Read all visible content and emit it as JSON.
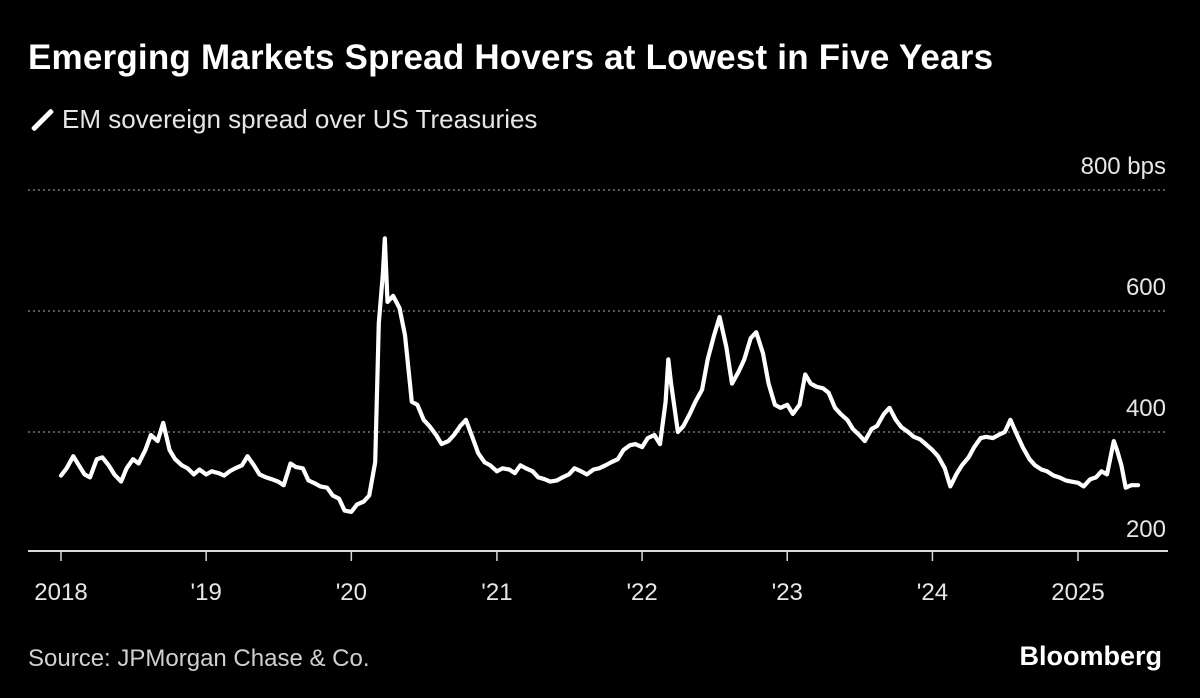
{
  "title": "Emerging Markets Spread Hovers at Lowest in Five Years",
  "legend_label": "EM sovereign spread over US Treasuries",
  "source": "Source: JPMorgan Chase & Co.",
  "brand": "Bloomberg",
  "colors": {
    "background": "#000000",
    "line": "#ffffff",
    "text": "#e6e6e6",
    "grid": "#8c8c8c"
  },
  "chart_data": {
    "type": "line",
    "title": "Emerging Markets Spread Hovers at Lowest in Five Years",
    "ylabel": "",
    "xlabel": "",
    "ylim": [
      200,
      800
    ],
    "xlim": [
      "2018-01-01",
      "2025-12-31"
    ],
    "grid": true,
    "legend_position": "top-left",
    "y_ticks": [
      {
        "value": 800,
        "label": "800 bps"
      },
      {
        "value": 600,
        "label": "600"
      },
      {
        "value": 400,
        "label": "400"
      },
      {
        "value": 200,
        "label": "200"
      }
    ],
    "x_ticks": [
      {
        "value": "2018-01-01",
        "label": "2018"
      },
      {
        "value": "2019-01-01",
        "label": "'19"
      },
      {
        "value": "2020-01-01",
        "label": "'20"
      },
      {
        "value": "2021-01-01",
        "label": "'21"
      },
      {
        "value": "2022-01-01",
        "label": "'22"
      },
      {
        "value": "2023-01-01",
        "label": "'23"
      },
      {
        "value": "2024-01-01",
        "label": "'24"
      },
      {
        "value": "2025-01-01",
        "label": "2025"
      }
    ],
    "series": [
      {
        "name": "EM sovereign spread over US Treasuries",
        "x": [
          "2018-01-01",
          "2018-01-15",
          "2018-02-01",
          "2018-02-15",
          "2018-03-01",
          "2018-03-15",
          "2018-04-01",
          "2018-04-15",
          "2018-05-01",
          "2018-05-15",
          "2018-06-01",
          "2018-06-15",
          "2018-07-01",
          "2018-07-15",
          "2018-08-01",
          "2018-08-15",
          "2018-09-01",
          "2018-09-15",
          "2018-10-01",
          "2018-10-15",
          "2018-11-01",
          "2018-11-15",
          "2018-12-01",
          "2018-12-15",
          "2019-01-01",
          "2019-01-15",
          "2019-02-01",
          "2019-02-15",
          "2019-03-01",
          "2019-03-15",
          "2019-04-01",
          "2019-04-15",
          "2019-05-01",
          "2019-05-15",
          "2019-06-01",
          "2019-06-15",
          "2019-07-01",
          "2019-07-15",
          "2019-08-01",
          "2019-08-15",
          "2019-09-01",
          "2019-09-15",
          "2019-10-01",
          "2019-10-15",
          "2019-11-01",
          "2019-11-15",
          "2019-12-01",
          "2019-12-15",
          "2020-01-01",
          "2020-01-15",
          "2020-02-01",
          "2020-02-15",
          "2020-03-01",
          "2020-03-10",
          "2020-03-20",
          "2020-03-25",
          "2020-04-01",
          "2020-04-15",
          "2020-05-01",
          "2020-05-15",
          "2020-06-01",
          "2020-06-15",
          "2020-07-01",
          "2020-07-15",
          "2020-08-01",
          "2020-08-15",
          "2020-09-01",
          "2020-09-15",
          "2020-10-01",
          "2020-10-15",
          "2020-11-01",
          "2020-11-15",
          "2020-12-01",
          "2020-12-15",
          "2021-01-01",
          "2021-01-15",
          "2021-02-01",
          "2021-02-15",
          "2021-03-01",
          "2021-03-15",
          "2021-04-01",
          "2021-04-15",
          "2021-05-01",
          "2021-05-15",
          "2021-06-01",
          "2021-06-15",
          "2021-07-01",
          "2021-07-15",
          "2021-08-01",
          "2021-08-15",
          "2021-09-01",
          "2021-09-15",
          "2021-10-01",
          "2021-10-15",
          "2021-11-01",
          "2021-11-15",
          "2021-12-01",
          "2021-12-15",
          "2022-01-01",
          "2022-01-15",
          "2022-02-01",
          "2022-02-15",
          "2022-03-01",
          "2022-03-08",
          "2022-03-15",
          "2022-04-01",
          "2022-04-15",
          "2022-05-01",
          "2022-05-15",
          "2022-06-01",
          "2022-06-15",
          "2022-07-01",
          "2022-07-15",
          "2022-08-01",
          "2022-08-15",
          "2022-09-01",
          "2022-09-15",
          "2022-10-01",
          "2022-10-15",
          "2022-11-01",
          "2022-11-15",
          "2022-12-01",
          "2022-12-15",
          "2023-01-01",
          "2023-01-15",
          "2023-02-01",
          "2023-02-15",
          "2023-03-01",
          "2023-03-15",
          "2023-04-01",
          "2023-04-15",
          "2023-05-01",
          "2023-05-15",
          "2023-06-01",
          "2023-06-15",
          "2023-07-01",
          "2023-07-15",
          "2023-08-01",
          "2023-08-15",
          "2023-09-01",
          "2023-09-15",
          "2023-10-01",
          "2023-10-15",
          "2023-11-01",
          "2023-11-15",
          "2023-12-01",
          "2023-12-15",
          "2024-01-01",
          "2024-01-15",
          "2024-02-01",
          "2024-02-15",
          "2024-03-01",
          "2024-03-15",
          "2024-04-01",
          "2024-04-15",
          "2024-05-01",
          "2024-05-15",
          "2024-06-01",
          "2024-06-15",
          "2024-07-01",
          "2024-07-15",
          "2024-08-01",
          "2024-08-15",
          "2024-09-01",
          "2024-09-15",
          "2024-10-01",
          "2024-10-15",
          "2024-11-01",
          "2024-11-15",
          "2024-12-01",
          "2024-12-15",
          "2025-01-01",
          "2025-01-15",
          "2025-02-01",
          "2025-02-15",
          "2025-03-01",
          "2025-03-15",
          "2025-04-01",
          "2025-04-09",
          "2025-04-20",
          "2025-05-01",
          "2025-05-15",
          "2025-06-01"
        ],
        "y": [
          328,
          340,
          360,
          345,
          330,
          325,
          355,
          358,
          345,
          330,
          318,
          340,
          355,
          348,
          370,
          395,
          385,
          415,
          370,
          355,
          345,
          340,
          330,
          338,
          330,
          335,
          332,
          328,
          335,
          340,
          345,
          360,
          345,
          330,
          325,
          322,
          318,
          312,
          348,
          342,
          340,
          320,
          315,
          310,
          308,
          295,
          290,
          270,
          268,
          280,
          285,
          295,
          350,
          580,
          660,
          720,
          615,
          625,
          605,
          560,
          450,
          445,
          420,
          410,
          395,
          380,
          385,
          395,
          410,
          420,
          390,
          365,
          350,
          345,
          335,
          340,
          338,
          332,
          345,
          340,
          335,
          325,
          322,
          318,
          320,
          325,
          330,
          340,
          335,
          330,
          338,
          340,
          345,
          350,
          355,
          370,
          378,
          380,
          375,
          390,
          395,
          380,
          450,
          520,
          480,
          400,
          410,
          430,
          450,
          470,
          520,
          560,
          590,
          540,
          480,
          500,
          520,
          555,
          565,
          530,
          480,
          445,
          440,
          445,
          430,
          445,
          495,
          480,
          475,
          472,
          465,
          440,
          430,
          420,
          405,
          395,
          385,
          405,
          410,
          430,
          440,
          420,
          408,
          400,
          392,
          388,
          380,
          370,
          360,
          340,
          310,
          330,
          345,
          358,
          375,
          390,
          392,
          390,
          395,
          400,
          420,
          395,
          375,
          355,
          345,
          338,
          335,
          328,
          325,
          320,
          318,
          316,
          310,
          322,
          325,
          335,
          330,
          385,
          370,
          345,
          308,
          312,
          312
        ]
      }
    ]
  }
}
